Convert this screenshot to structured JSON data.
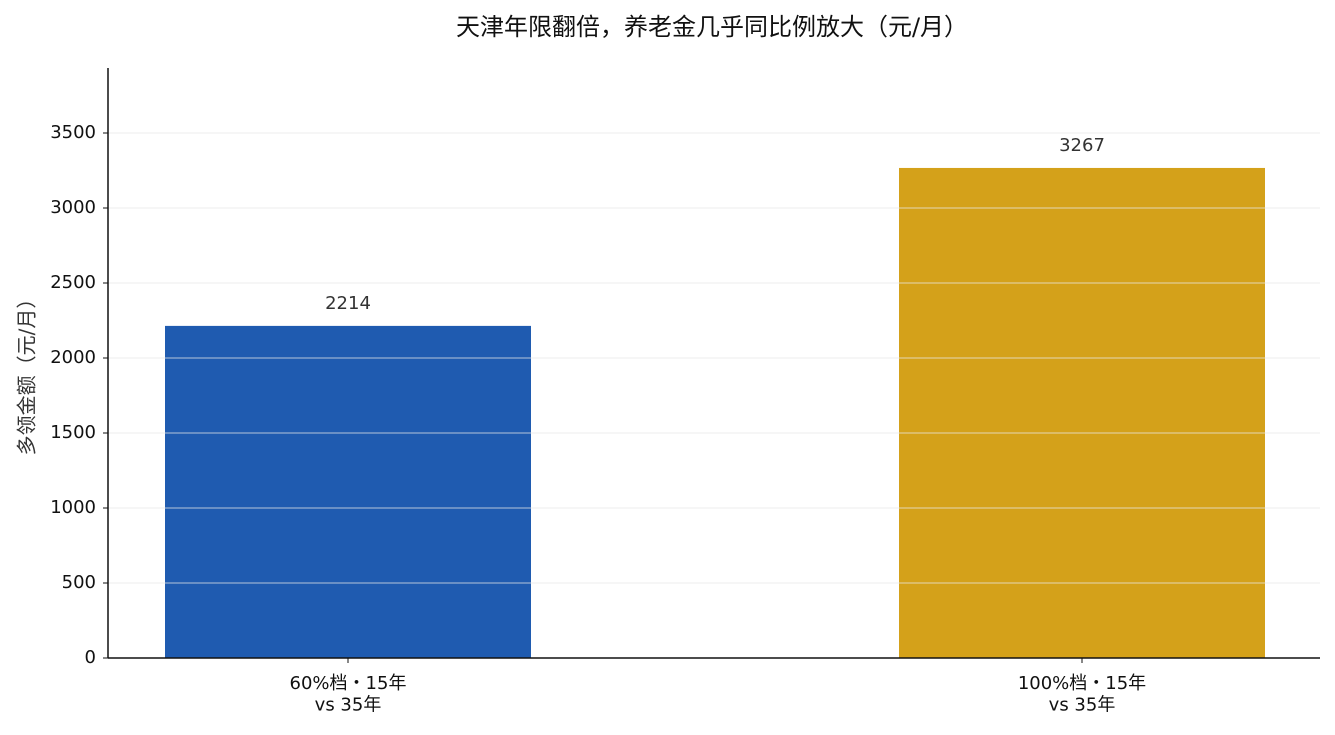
{
  "chart_data": {
    "type": "bar",
    "title": "天津年限翻倍，养老金几乎同比例放大（元/月）",
    "y_label": "多领金额（元/月）",
    "categories": [
      "60%档・15年\nvs 35年",
      "100%档・15年\nvs 35年"
    ],
    "values": [
      2214,
      3267
    ],
    "colors": [
      "#1f5bb0",
      "#d4a11a"
    ],
    "ylim": [
      0,
      3920
    ],
    "yticks": [
      0,
      500,
      1000,
      1500,
      2000,
      2500,
      3000,
      3500
    ],
    "grid": true
  }
}
